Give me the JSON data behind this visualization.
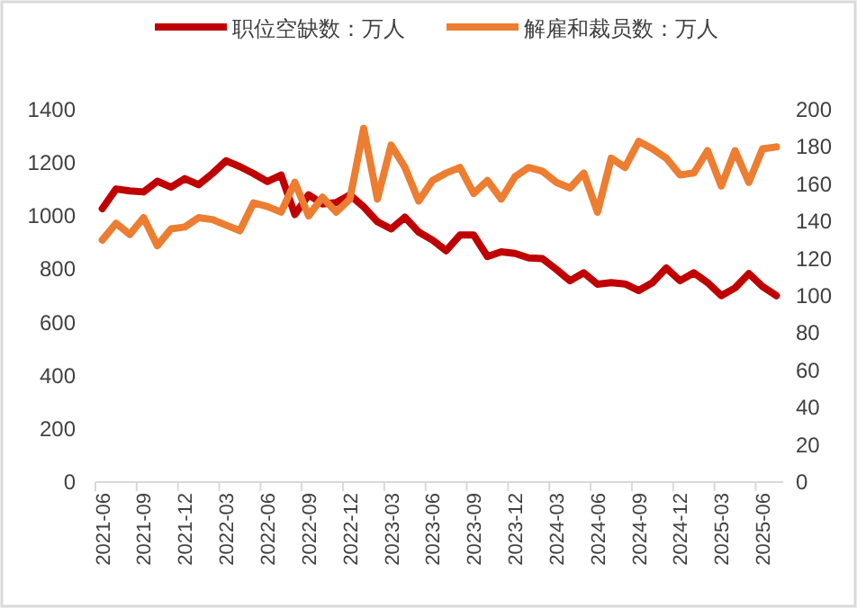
{
  "chart_data": {
    "type": "line",
    "categories": [
      "2021-06",
      null,
      null,
      "2021-09",
      null,
      null,
      "2021-12",
      null,
      null,
      "2022-03",
      null,
      null,
      "2022-06",
      null,
      null,
      "2022-09",
      null,
      null,
      "2022-12",
      null,
      null,
      "2023-03",
      null,
      null,
      "2023-06",
      null,
      null,
      "2023-09",
      null,
      null,
      "2023-12",
      null,
      null,
      "2024-03",
      null,
      null,
      "2024-06",
      null,
      null,
      "2024-09",
      null,
      null,
      "2024-12",
      null,
      null,
      "2025-03",
      null,
      null,
      "2025-06",
      null
    ],
    "series": [
      {
        "name": "职位空缺数：万人",
        "color": "#c00000",
        "values": [
          1028,
          1102,
          1095,
          1091,
          1131,
          1109,
          1141,
          1118,
          1160,
          1208,
          1186,
          1160,
          1130,
          1154,
          1006,
          1080,
          1046,
          1051,
          1080,
          1035,
          979,
          952,
          996,
          940,
          910,
          870,
          929,
          929,
          848,
          866,
          860,
          843,
          840,
          800,
          757,
          787,
          744,
          750,
          745,
          720,
          750,
          805,
          757,
          787,
          750,
          701,
          730,
          784,
          735,
          701
        ]
      },
      {
        "name": "解雇和裁员数：万人",
        "color": "#ed7d31",
        "axis": "y2",
        "values": [
          130,
          139,
          133,
          142,
          127,
          136,
          137,
          142,
          141,
          138,
          135,
          150,
          148,
          145,
          161,
          143,
          153,
          145,
          152,
          190,
          152,
          181,
          169,
          151,
          162,
          166,
          169,
          155,
          162,
          152,
          164,
          169,
          167,
          161,
          158,
          166,
          145,
          174,
          169,
          183,
          179,
          174,
          165,
          166,
          178,
          159,
          178,
          161,
          179,
          180
        ]
      }
    ],
    "ylim": [
      0,
      1400
    ],
    "yticks": [
      0,
      200,
      400,
      600,
      800,
      1000,
      1200,
      1400
    ],
    "y2lim": [
      0,
      200
    ],
    "y2ticks": [
      0,
      20,
      40,
      60,
      80,
      100,
      120,
      140,
      160,
      180,
      200
    ],
    "legend": "top",
    "grid": false
  }
}
